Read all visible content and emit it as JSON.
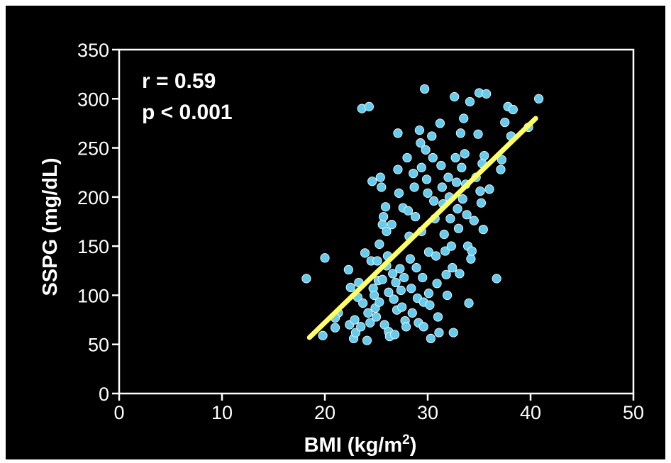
{
  "chart_data": {
    "type": "scatter",
    "xlabel": "BMI (kg/m",
    "xlabel_sup": "2",
    "xlabel_end": ")",
    "ylabel": "SSPG (mg/dL)",
    "xlim": [
      0,
      50
    ],
    "ylim": [
      0,
      350
    ],
    "xticks": [
      "0",
      "10",
      "20",
      "30",
      "40",
      "50"
    ],
    "yticks": [
      "0",
      "50",
      "100",
      "150",
      "200",
      "250",
      "300",
      "350"
    ],
    "annotations": [
      "r = 0.59",
      "p < 0.001"
    ],
    "grid": false,
    "point_color": "#66CCEE",
    "line_color": "#FFFF66",
    "regression": {
      "x": [
        18.5,
        40.5
      ],
      "y": [
        57,
        280
      ]
    },
    "points": [
      [
        18.2,
        117
      ],
      [
        19.8,
        59
      ],
      [
        20.0,
        138
      ],
      [
        21.0,
        67
      ],
      [
        21.3,
        82
      ],
      [
        21.0,
        77
      ],
      [
        22.3,
        126
      ],
      [
        22.4,
        70
      ],
      [
        22.5,
        108
      ],
      [
        22.8,
        56
      ],
      [
        22.9,
        75
      ],
      [
        23.0,
        62
      ],
      [
        23.2,
        98
      ],
      [
        23.3,
        113
      ],
      [
        23.5,
        68
      ],
      [
        23.6,
        290
      ],
      [
        23.7,
        92
      ],
      [
        23.9,
        143
      ],
      [
        24.1,
        54
      ],
      [
        24.2,
        82
      ],
      [
        24.3,
        292
      ],
      [
        24.4,
        72
      ],
      [
        24.5,
        135
      ],
      [
        24.6,
        216
      ],
      [
        24.7,
        107
      ],
      [
        24.8,
        100
      ],
      [
        24.9,
        87
      ],
      [
        25.0,
        78
      ],
      [
        25.1,
        135
      ],
      [
        25.2,
        115
      ],
      [
        25.3,
        152
      ],
      [
        25.3,
        93
      ],
      [
        25.4,
        220
      ],
      [
        25.5,
        210
      ],
      [
        25.6,
        172
      ],
      [
        25.6,
        116
      ],
      [
        25.7,
        180
      ],
      [
        25.8,
        70
      ],
      [
        25.9,
        190
      ],
      [
        26.0,
        165
      ],
      [
        26.0,
        130
      ],
      [
        26.1,
        140
      ],
      [
        26.2,
        103
      ],
      [
        26.2,
        63
      ],
      [
        26.3,
        58
      ],
      [
        26.5,
        172
      ],
      [
        26.6,
        122
      ],
      [
        26.7,
        96
      ],
      [
        26.8,
        60
      ],
      [
        26.9,
        113
      ],
      [
        27.0,
        85
      ],
      [
        27.1,
        265
      ],
      [
        27.1,
        228
      ],
      [
        27.2,
        204
      ],
      [
        27.3,
        127
      ],
      [
        27.4,
        105
      ],
      [
        27.5,
        88
      ],
      [
        27.6,
        189
      ],
      [
        27.7,
        118
      ],
      [
        27.8,
        74
      ],
      [
        27.9,
        68
      ],
      [
        28.0,
        240
      ],
      [
        28.1,
        186
      ],
      [
        28.2,
        160
      ],
      [
        28.3,
        137
      ],
      [
        28.4,
        107
      ],
      [
        28.5,
        82
      ],
      [
        28.6,
        224
      ],
      [
        28.7,
        210
      ],
      [
        28.8,
        180
      ],
      [
        28.9,
        128
      ],
      [
        29.0,
        97
      ],
      [
        29.1,
        72
      ],
      [
        29.2,
        268
      ],
      [
        29.3,
        255
      ],
      [
        29.4,
        230
      ],
      [
        29.4,
        165
      ],
      [
        29.5,
        118
      ],
      [
        29.6,
        93
      ],
      [
        29.6,
        68
      ],
      [
        29.7,
        310
      ],
      [
        29.8,
        248
      ],
      [
        29.9,
        218
      ],
      [
        30.0,
        204
      ],
      [
        30.1,
        144
      ],
      [
        30.1,
        102
      ],
      [
        30.2,
        90
      ],
      [
        30.3,
        56
      ],
      [
        30.4,
        262
      ],
      [
        30.5,
        240
      ],
      [
        30.6,
        196
      ],
      [
        30.7,
        178
      ],
      [
        30.8,
        140
      ],
      [
        30.9,
        112
      ],
      [
        31.0,
        78
      ],
      [
        31.1,
        62
      ],
      [
        31.2,
        275
      ],
      [
        31.3,
        232
      ],
      [
        31.4,
        210
      ],
      [
        31.5,
        193
      ],
      [
        31.6,
        162
      ],
      [
        31.7,
        145
      ],
      [
        31.8,
        121
      ],
      [
        31.9,
        100
      ],
      [
        32.0,
        220
      ],
      [
        32.1,
        200
      ],
      [
        32.2,
        178
      ],
      [
        32.3,
        150
      ],
      [
        32.4,
        128
      ],
      [
        32.5,
        62
      ],
      [
        32.6,
        302
      ],
      [
        32.7,
        240
      ],
      [
        32.8,
        215
      ],
      [
        32.9,
        188
      ],
      [
        33.0,
        168
      ],
      [
        33.1,
        122
      ],
      [
        33.2,
        265
      ],
      [
        33.3,
        230
      ],
      [
        33.4,
        198
      ],
      [
        33.5,
        280
      ],
      [
        33.6,
        244
      ],
      [
        33.7,
        213
      ],
      [
        33.8,
        182
      ],
      [
        33.9,
        150
      ],
      [
        34.0,
        92
      ],
      [
        34.1,
        297
      ],
      [
        34.2,
        137
      ],
      [
        34.3,
        145
      ],
      [
        34.5,
        176
      ],
      [
        34.7,
        220
      ],
      [
        34.9,
        264
      ],
      [
        35.0,
        306
      ],
      [
        35.1,
        206
      ],
      [
        35.2,
        194
      ],
      [
        35.3,
        234
      ],
      [
        35.4,
        167
      ],
      [
        35.5,
        242
      ],
      [
        35.7,
        305
      ],
      [
        36.0,
        208
      ],
      [
        36.7,
        117
      ],
      [
        37.1,
        228
      ],
      [
        37.2,
        238
      ],
      [
        37.5,
        276
      ],
      [
        37.8,
        292
      ],
      [
        38.1,
        262
      ],
      [
        38.3,
        289
      ],
      [
        39.8,
        271
      ],
      [
        40.8,
        300
      ]
    ]
  }
}
